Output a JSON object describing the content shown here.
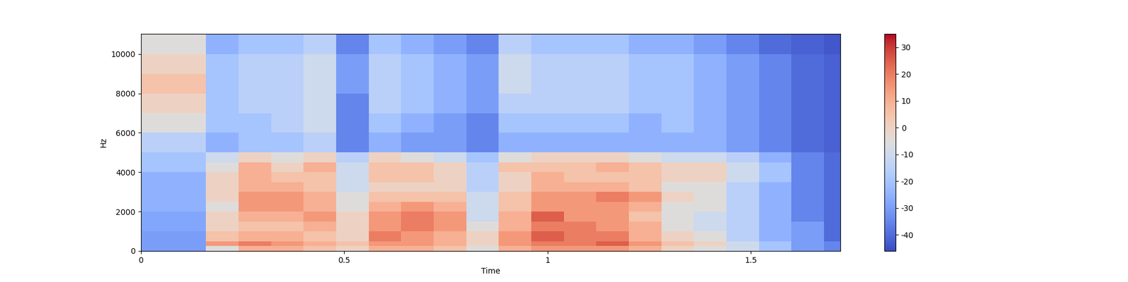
{
  "chart_data": {
    "type": "heatmap",
    "x_label": "Time",
    "y_label": "Hz",
    "color": "coolwarm",
    "xlim": [
      0,
      1.72
    ],
    "ylim": [
      0,
      11025
    ],
    "xticks": [
      0,
      0.5,
      1,
      1.5
    ],
    "yticks": [
      0,
      2000,
      4000,
      6000,
      8000,
      10000
    ],
    "x_edges": [
      0,
      0.08,
      0.16,
      0.24,
      0.32,
      0.4,
      0.48,
      0.56,
      0.64,
      0.72,
      0.8,
      0.88,
      0.96,
      1.04,
      1.12,
      1.2,
      1.28,
      1.36,
      1.44,
      1.52,
      1.6,
      1.68,
      1.72
    ],
    "y_edges": [
      0,
      250,
      500,
      1000,
      1500,
      2000,
      2500,
      3000,
      3500,
      4000,
      4500,
      5000,
      6000,
      7000,
      8000,
      9000,
      10000,
      11025
    ],
    "cells": [
      [
        -30,
        -30,
        -5,
        10,
        10,
        5,
        0,
        10,
        10,
        5,
        -5,
        10,
        15,
        15,
        15,
        10,
        0,
        -5,
        -10,
        -20,
        -30,
        -35
      ],
      [
        -30,
        -30,
        15,
        20,
        15,
        10,
        5,
        15,
        15,
        10,
        0,
        15,
        20,
        20,
        25,
        15,
        5,
        0,
        -10,
        -20,
        -30,
        -35
      ],
      [
        -30,
        -30,
        5,
        10,
        10,
        5,
        0,
        20,
        15,
        10,
        0,
        15,
        25,
        20,
        20,
        10,
        0,
        -5,
        -15,
        -25,
        -30,
        -40
      ],
      [
        -28,
        -28,
        0,
        5,
        5,
        10,
        0,
        15,
        20,
        15,
        -5,
        10,
        20,
        20,
        15,
        10,
        -5,
        -10,
        -15,
        -25,
        -30,
        -40
      ],
      [
        -28,
        -28,
        0,
        10,
        10,
        15,
        0,
        15,
        20,
        15,
        -10,
        10,
        25,
        15,
        15,
        5,
        -5,
        -10,
        -15,
        -25,
        -35,
        -40
      ],
      [
        -25,
        -25,
        -5,
        15,
        15,
        10,
        -5,
        10,
        15,
        10,
        -10,
        5,
        15,
        15,
        15,
        10,
        -5,
        -5,
        -15,
        -25,
        -35,
        -40
      ],
      [
        -25,
        -25,
        0,
        15,
        15,
        10,
        -5,
        5,
        5,
        5,
        -10,
        5,
        15,
        15,
        20,
        15,
        0,
        -5,
        -15,
        -25,
        -35,
        -40
      ],
      [
        -25,
        -25,
        0,
        10,
        10,
        5,
        -10,
        0,
        0,
        0,
        -15,
        0,
        10,
        10,
        10,
        5,
        -5,
        -5,
        -15,
        -25,
        -35,
        -40
      ],
      [
        -25,
        -25,
        0,
        10,
        5,
        5,
        -10,
        5,
        5,
        0,
        -15,
        0,
        10,
        5,
        5,
        5,
        0,
        0,
        -10,
        -20,
        -35,
        -40
      ],
      [
        -20,
        -20,
        -5,
        10,
        0,
        10,
        -10,
        5,
        5,
        0,
        -15,
        5,
        5,
        5,
        10,
        5,
        0,
        0,
        -10,
        -20,
        -35,
        -40
      ],
      [
        -20,
        -20,
        -10,
        0,
        -5,
        0,
        -15,
        0,
        -5,
        -10,
        -20,
        -5,
        0,
        0,
        0,
        -5,
        -10,
        -10,
        -15,
        -25,
        -35,
        -40
      ],
      [
        -15,
        -15,
        -25,
        -20,
        -20,
        -15,
        -35,
        -25,
        -30,
        -30,
        -35,
        -25,
        -25,
        -25,
        -25,
        -25,
        -25,
        -25,
        -30,
        -35,
        -40,
        -42
      ],
      [
        -5,
        -5,
        -20,
        -20,
        -15,
        -10,
        -35,
        -20,
        -25,
        -30,
        -35,
        -20,
        -20,
        -20,
        -20,
        -25,
        -20,
        -25,
        -30,
        -35,
        -40,
        -42
      ],
      [
        0,
        0,
        -20,
        -15,
        -15,
        -10,
        -35,
        -15,
        -20,
        -25,
        -30,
        -15,
        -15,
        -15,
        -15,
        -20,
        -20,
        -25,
        -30,
        -35,
        -40,
        -42
      ],
      [
        5,
        5,
        -20,
        -15,
        -15,
        -10,
        -30,
        -15,
        -20,
        -25,
        -30,
        -10,
        -15,
        -15,
        -15,
        -20,
        -20,
        -25,
        -30,
        -35,
        -40,
        -42
      ],
      [
        0,
        0,
        -20,
        -15,
        -15,
        -10,
        -30,
        -15,
        -20,
        -25,
        -30,
        -10,
        -15,
        -15,
        -15,
        -20,
        -20,
        -25,
        -30,
        -35,
        -40,
        -42
      ],
      [
        -5,
        -5,
        -25,
        -20,
        -20,
        -15,
        -35,
        -20,
        -25,
        -30,
        -35,
        -15,
        -20,
        -20,
        -20,
        -25,
        -25,
        -30,
        -35,
        -40,
        -42,
        -44
      ]
    ],
    "color_range": [
      -46,
      35
    ],
    "colorbar_ticks": [
      -40,
      -30,
      -20,
      -10,
      0,
      10,
      20,
      30
    ]
  }
}
